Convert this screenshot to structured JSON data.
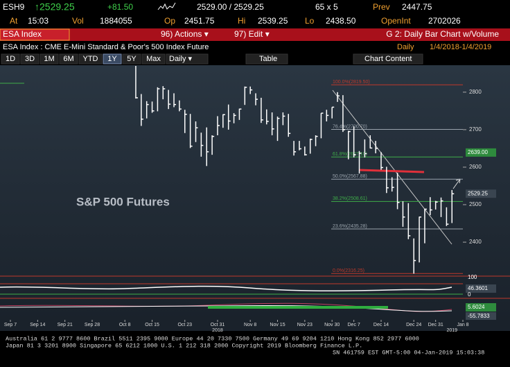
{
  "header": {
    "ticker": "ESH9",
    "last": "↑2529.25",
    "change": "+81.50",
    "bid_ask": "2529.00 / 2529.25",
    "size": "65 x 5",
    "prev_label": "Prev",
    "prev": "2447.75",
    "at_label": "At",
    "time": "15:03",
    "vol_label": "Vol",
    "vol": "1884055",
    "op_label": "Op",
    "op": "2451.75",
    "hi_label": "Hi",
    "hi": "2539.25",
    "lo_label": "Lo",
    "lo": "2438.50",
    "oi_label": "OpenInt",
    "oi": "2702026"
  },
  "menu": {
    "security": "ESA Index",
    "actions": "96) Actions ▾",
    "edit": "97) Edit ▾",
    "chart_name": "G 2: Daily Bar Chart w/Volume"
  },
  "subtitle": {
    "description": "ESA Index : CME E-Mini Standard & Poor's 500 Index Future",
    "period": "Daily",
    "range": "1/4/2018-1/4/2019"
  },
  "toolbar": {
    "buttons": [
      "1D",
      "3D",
      "1M",
      "6M",
      "YTD",
      "1Y",
      "5Y",
      "Max"
    ],
    "frequency": "Daily ▾",
    "table": "Table",
    "content": "Chart Content"
  },
  "chart_data": {
    "type": "ohlc",
    "title": "S&P 500 Futures",
    "categories": [
      "Sep 7",
      null,
      null,
      null,
      null,
      "Sep 14",
      null,
      null,
      null,
      null,
      "Sep 21",
      null,
      null,
      null,
      null,
      "Sep 28",
      null,
      null,
      null,
      null,
      null,
      "Oct 8",
      null,
      null,
      null,
      null,
      "Oct 15",
      null,
      null,
      null,
      null,
      null,
      "Oct 23",
      null,
      null,
      null,
      null,
      null,
      "Oct 31",
      null,
      null,
      null,
      null,
      null,
      "Nov 8",
      null,
      null,
      null,
      null,
      "Nov 15",
      null,
      null,
      null,
      null,
      "Nov 23",
      null,
      null,
      null,
      null,
      "Nov 30",
      null,
      null,
      null,
      "Dec 7",
      null,
      null,
      null,
      null,
      "Dec 14",
      null,
      null,
      null,
      null,
      null,
      "Dec 24",
      null,
      null,
      null,
      "Dec 31",
      null,
      null,
      null,
      null,
      "Jan 8"
    ],
    "high": [
      null,
      null,
      null,
      null,
      null,
      null,
      null,
      null,
      null,
      null,
      null,
      null,
      null,
      null,
      null,
      null,
      null,
      null,
      null,
      null,
      null,
      null,
      null,
      2880,
      2795,
      2776,
      2775,
      2813,
      2816,
      2806,
      2797,
      2778,
      2753,
      2742,
      2722,
      2692,
      2706,
      2685,
      2736,
      2741,
      2767,
      2744,
      2756,
      2815,
      2815,
      2797,
      2785,
      2754,
      2746,
      2735,
      2746,
      2742,
      2670,
      2670,
      2655,
      2676,
      2685,
      2744,
      2753,
      2760,
      2800,
      2792,
      2697,
      2709,
      2643,
      2674,
      2685,
      2670,
      2640,
      2601,
      2573,
      2585,
      2509,
      2504,
      2410,
      2468,
      2489,
      2520,
      2510,
      2519,
      2493,
      2539,
      null,
      null
    ],
    "low": [
      null,
      null,
      null,
      null,
      null,
      null,
      null,
      null,
      null,
      null,
      null,
      null,
      null,
      null,
      null,
      null,
      null,
      null,
      null,
      null,
      null,
      null,
      null,
      2783,
      2710,
      2730,
      2745,
      2749,
      2781,
      2755,
      2760,
      2749,
      2691,
      2651,
      2667,
      2628,
      2603,
      2633,
      2685,
      2705,
      2700,
      2717,
      2726,
      2766,
      2795,
      2765,
      2718,
      2714,
      2685,
      2670,
      2712,
      2681,
      2631,
      2645,
      2631,
      2636,
      2656,
      2677,
      2722,
      2730,
      2774,
      2694,
      2621,
      2626,
      2583,
      2626,
      2650,
      2637,
      2593,
      2531,
      2535,
      2488,
      2441,
      2408,
      2316,
      2346,
      2397,
      2472,
      2487,
      2467,
      2443,
      2451,
      null,
      null
    ],
    "close": [
      null,
      null,
      null,
      null,
      null,
      null,
      null,
      null,
      null,
      null,
      null,
      null,
      null,
      null,
      null,
      null,
      null,
      null,
      null,
      null,
      null,
      null,
      null,
      2785,
      2728,
      2767,
      2750,
      2809,
      2809,
      2768,
      2767,
      2755,
      2741,
      2656,
      2705,
      2658,
      2641,
      2682,
      2711,
      2740,
      2723,
      2738,
      2755,
      2813,
      2806,
      2781,
      2726,
      2722,
      2702,
      2730,
      2736,
      2690,
      2641,
      2649,
      2633,
      2674,
      2682,
      2744,
      2738,
      2760,
      2790,
      2700,
      2695,
      2633,
      2637,
      2636,
      2651,
      2650,
      2599,
      2545,
      2546,
      2506,
      2467,
      2417,
      2351,
      2467,
      2488,
      2486,
      2507,
      2510,
      2448,
      2529,
      null,
      null
    ],
    "color": "#ffffff",
    "ylim": [
      2315,
      2870
    ],
    "yticks": [
      2400,
      2500,
      2600,
      2700,
      2800
    ],
    "years": [
      "2018",
      "2019"
    ],
    "levels": [
      {
        "value": 2819.5,
        "label": "100.0%(2819.50)",
        "color": "#c0392b"
      },
      {
        "value": 2700.7,
        "label": "76.4%(2700.70)",
        "color": "#9aa4ad"
      },
      {
        "value": 2627.1,
        "label": "61.8%(2627.10)",
        "color": "#3fae49"
      },
      {
        "value": 2567.9,
        "label": "50.0%(2567.88)",
        "color": "#9aa4ad"
      },
      {
        "value": 2508.6,
        "label": "38.2%(2508.61)",
        "color": "#3fae49"
      },
      {
        "value": 2435.3,
        "label": "23.6%(2435.28)",
        "color": "#9aa4ad"
      },
      {
        "value": 2316.3,
        "label": "0.0%(2316.25)",
        "color": "#c0392b"
      }
    ],
    "price_tags": [
      {
        "value": 2639,
        "label": "2639.00",
        "color": "#2e8b3d"
      },
      {
        "value": 2529.25,
        "label": "2529.25",
        "color": "#3a4550"
      }
    ]
  },
  "panes": {
    "rsi_top": "100",
    "rsi_value": "46.3601",
    "rsi_bottom": "0",
    "macd_value": "5.6024",
    "macd_signal": "-55.7833"
  },
  "footer": {
    "line1": "Australia 61 2 9777 8600 Brazil 5511 2395 9000 Europe 44 20 7330 7500 Germany 49 69 9204 1210 Hong Kong 852 2977 6000",
    "line2": "Japan 81 3 3201 8900     Singapore 65 6212 1000     U.S. 1 212 318 2000     Copyright 2019 Bloomberg Finance L.P.",
    "line3": "SN 461759 EST  GMT-5:00 04-Jan-2019 15:03:38"
  }
}
